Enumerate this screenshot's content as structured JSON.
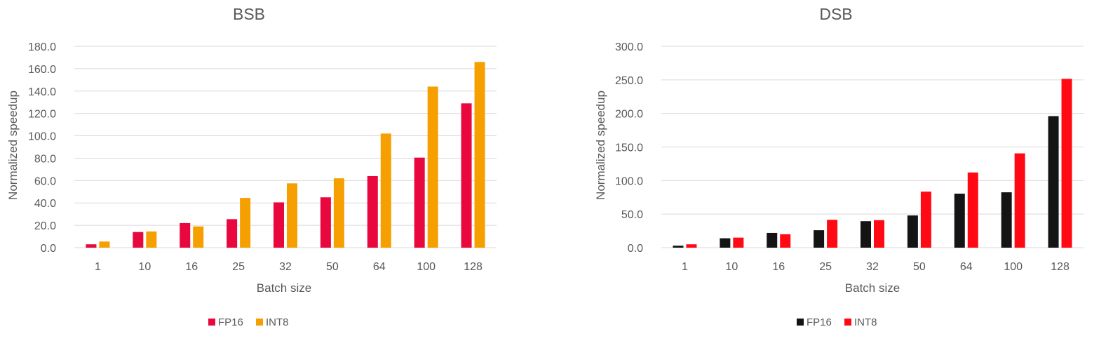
{
  "chart_data": [
    {
      "type": "bar",
      "title": "BSB",
      "xlabel": "Batch size",
      "ylabel": "Normalized speedup",
      "categories": [
        "1",
        "10",
        "16",
        "25",
        "32",
        "50",
        "64",
        "100",
        "128"
      ],
      "ylim": [
        0,
        180
      ],
      "yticks": [
        "0.0",
        "20.0",
        "40.0",
        "60.0",
        "80.0",
        "100.0",
        "120.0",
        "140.0",
        "160.0",
        "180.0"
      ],
      "grid": true,
      "legend": "bottom",
      "series": [
        {
          "name": "FP16",
          "color": "#e8083e",
          "values": [
            3.0,
            14.0,
            22.0,
            25.5,
            40.5,
            45.0,
            64.0,
            80.5,
            129.0
          ]
        },
        {
          "name": "INT8",
          "color": "#f5a000",
          "values": [
            5.5,
            14.5,
            19.0,
            44.5,
            57.5,
            62.0,
            102.0,
            144.0,
            166.0
          ]
        }
      ]
    },
    {
      "type": "bar",
      "title": "DSB",
      "xlabel": "Batch size",
      "ylabel": "Normalized speedup",
      "categories": [
        "1",
        "10",
        "16",
        "25",
        "32",
        "50",
        "64",
        "100",
        "128"
      ],
      "ylim": [
        0,
        300
      ],
      "yticks": [
        "0.0",
        "50.0",
        "100.0",
        "150.0",
        "200.0",
        "250.0",
        "300.0"
      ],
      "grid": true,
      "legend": "bottom",
      "series": [
        {
          "name": "FP16",
          "color": "#141414",
          "values": [
            3.0,
            14.0,
            22.0,
            26.0,
            39.5,
            48.0,
            80.5,
            82.5,
            196.0
          ]
        },
        {
          "name": "INT8",
          "color": "#ff0a14",
          "values": [
            5.0,
            15.0,
            20.0,
            41.5,
            41.0,
            83.5,
            112.0,
            140.5,
            251.5
          ]
        }
      ]
    }
  ]
}
